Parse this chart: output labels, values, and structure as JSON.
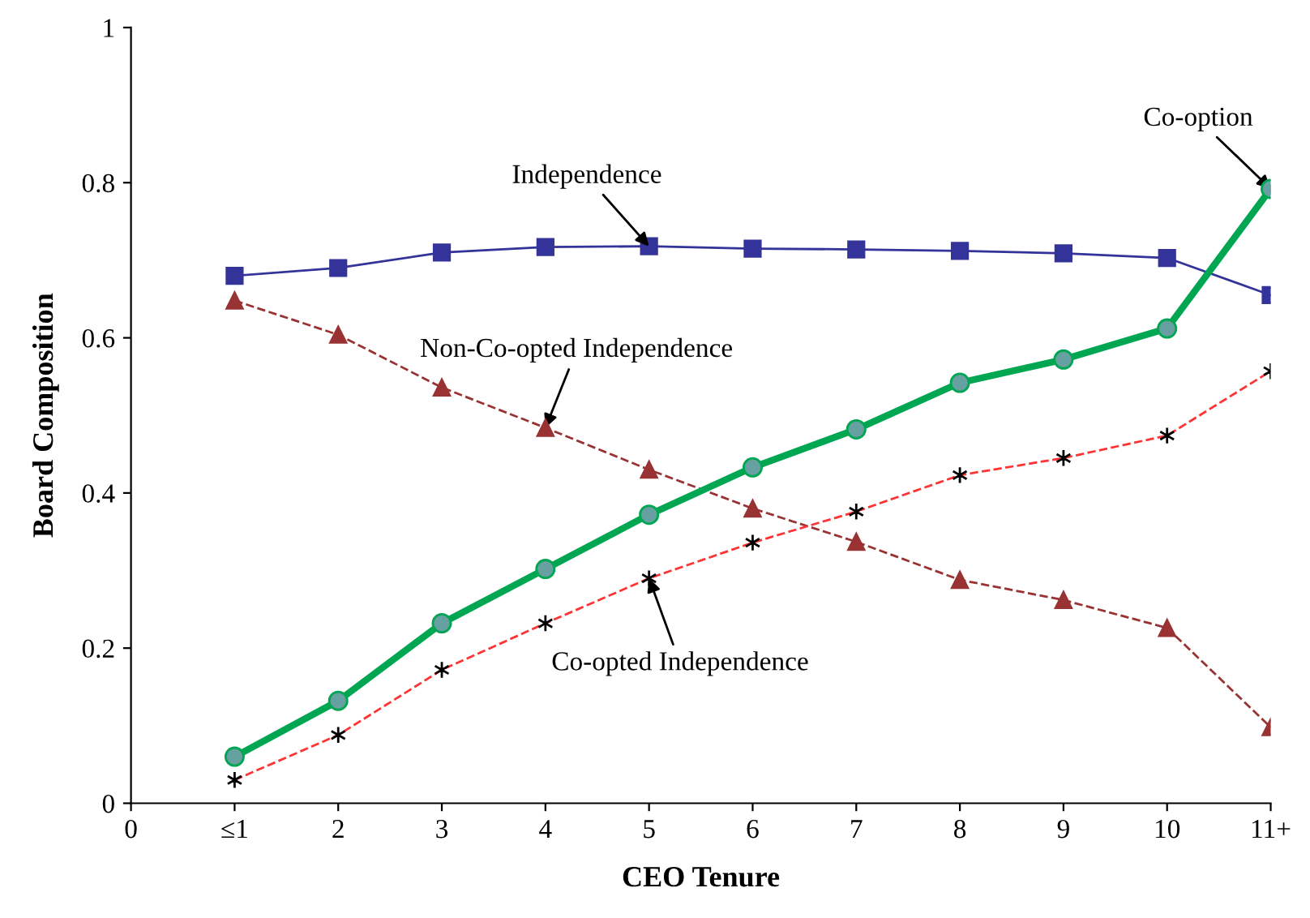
{
  "chart_data": {
    "type": "line",
    "xlabel": "CEO Tenure",
    "ylabel": "Board Composition",
    "categories": [
      "0",
      "≤1",
      "2",
      "3",
      "4",
      "5",
      "6",
      "7",
      "8",
      "9",
      "10",
      "11+"
    ],
    "ylim": [
      0,
      1
    ],
    "yticks": [
      0,
      0.2,
      0.4,
      0.6,
      0.8,
      1
    ],
    "grid": false,
    "legend": false,
    "series": [
      {
        "color": "#333399",
        "marker": "square",
        "line_style": "solid",
        "values": [
          null,
          0.68,
          0.69,
          0.71,
          0.717,
          0.718,
          0.715,
          0.714,
          0.712,
          0.709,
          0.703,
          0.655
        ]
      },
      {
        "color": "#993333",
        "marker": "triangle",
        "line_style": "dashed",
        "values": [
          null,
          0.648,
          0.604,
          0.536,
          0.484,
          0.43,
          0.38,
          0.337,
          0.288,
          0.262,
          0.226,
          0.098
        ]
      },
      {
        "color": "#00a651",
        "marker": "circle",
        "line_style": "solid",
        "values": [
          null,
          0.06,
          0.132,
          0.232,
          0.302,
          0.372,
          0.433,
          0.482,
          0.542,
          0.572,
          0.612,
          0.792
        ]
      },
      {
        "color": "#ff3333",
        "marker": "cross",
        "line_style": "dashed",
        "values": [
          null,
          0.03,
          0.088,
          0.172,
          0.232,
          0.29,
          0.336,
          0.376,
          0.423,
          0.445,
          0.474,
          0.557
        ]
      }
    ],
    "annotations": [
      {
        "text": "Independence",
        "x": "5",
        "y": 0.718
      },
      {
        "text": "Non-Co-opted Independence",
        "x": "4",
        "y": 0.484
      },
      {
        "text": "Co-option",
        "x": "11+",
        "y": 0.792
      },
      {
        "text": "Co-opted Independence",
        "x": "5",
        "y": 0.29
      }
    ]
  }
}
